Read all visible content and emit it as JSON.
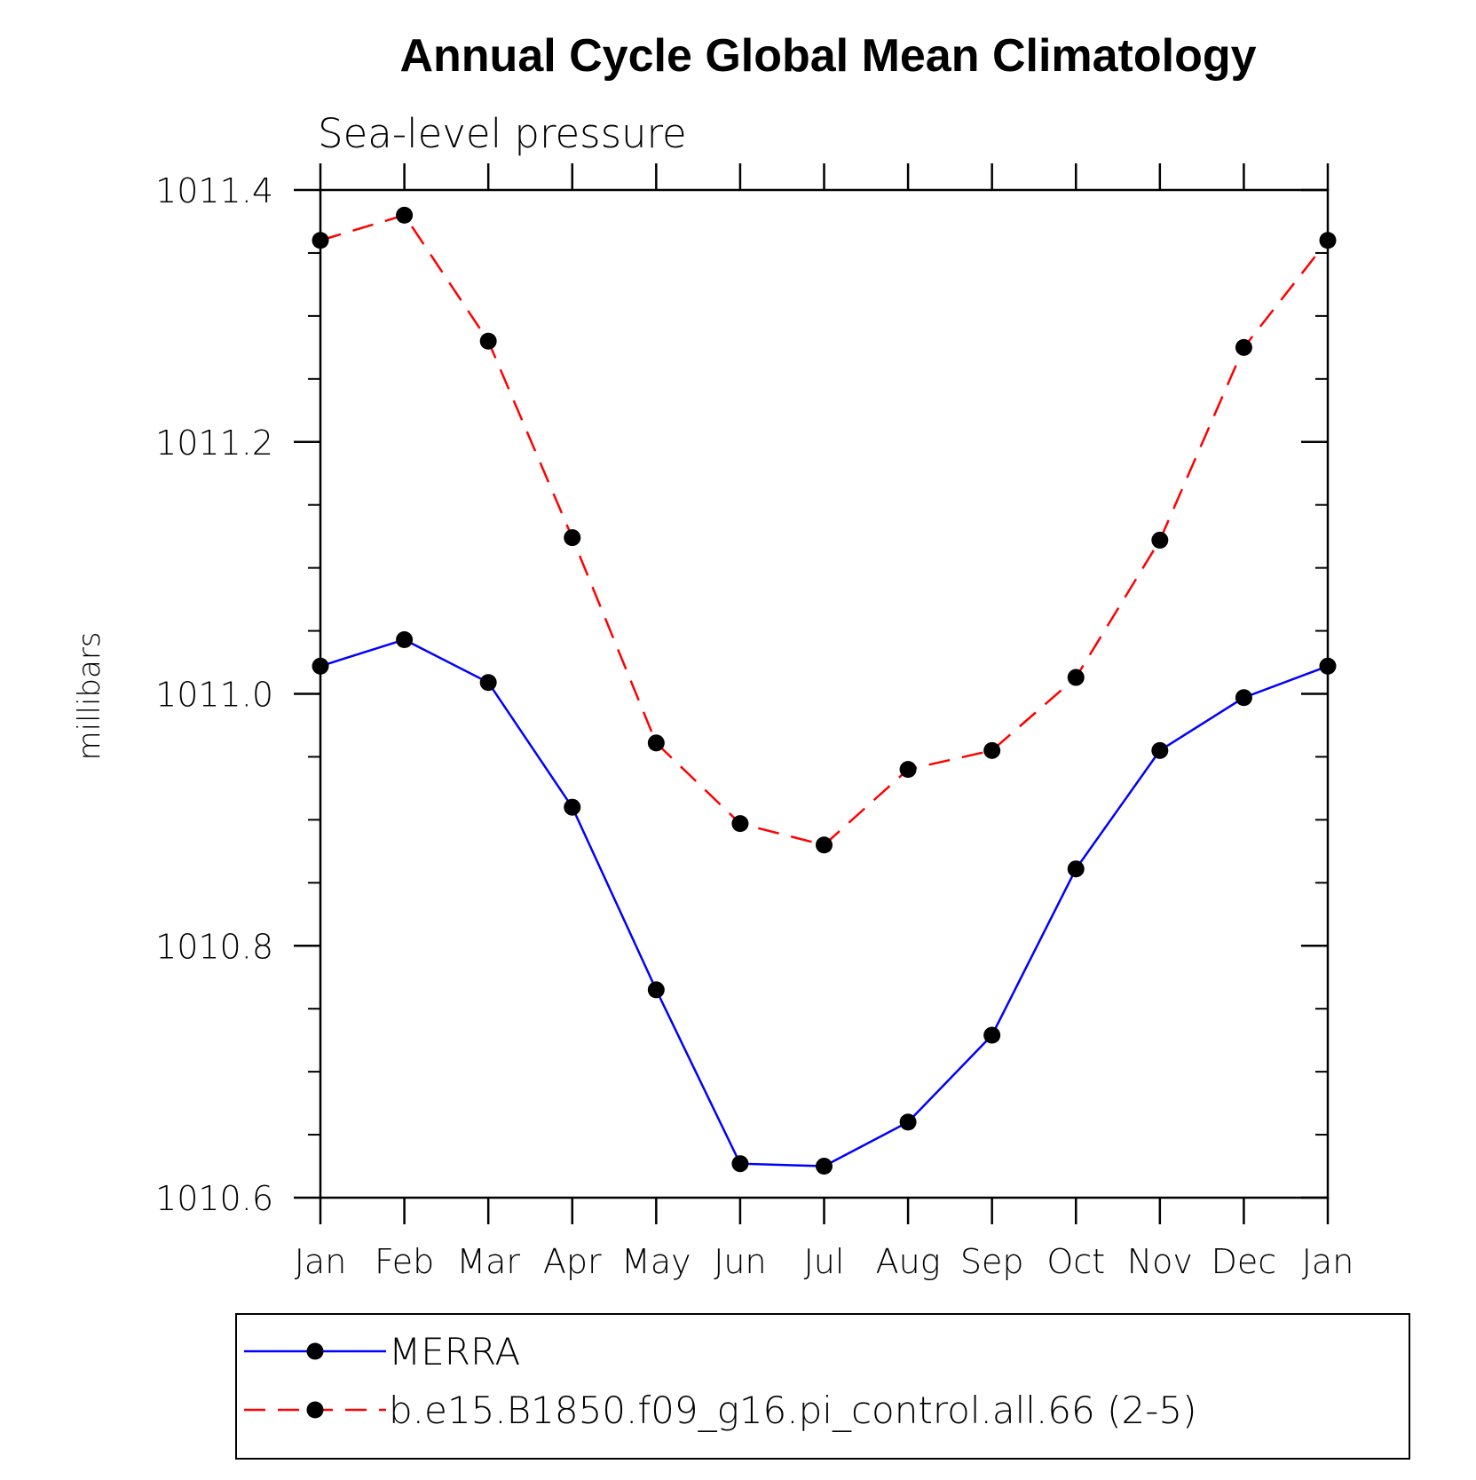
{
  "chart_data": {
    "type": "line",
    "title": "Annual Cycle Global Mean Climatology",
    "subtitle": "Sea-level pressure",
    "xlabel": "",
    "ylabel": "millibars",
    "categories": [
      "Jan",
      "Feb",
      "Mar",
      "Apr",
      "May",
      "Jun",
      "Jul",
      "Aug",
      "Sep",
      "Oct",
      "Nov",
      "Dec",
      "Jan"
    ],
    "ylim": [
      1010.6,
      1011.4
    ],
    "yticks": [
      1010.6,
      1010.8,
      1011.0,
      1011.2,
      1011.4
    ],
    "ytick_labels": [
      "1010.6",
      "1010.8",
      "1011.0",
      "1011.2",
      "1011.4"
    ],
    "yminor_step": 0.05,
    "grid": false,
    "legend_position": "bottom",
    "series": [
      {
        "name": "MERRA",
        "color": "#0000ff",
        "dash": "solid",
        "values": [
          1011.022,
          1011.043,
          1011.009,
          1010.91,
          1010.765,
          1010.627,
          1010.625,
          1010.66,
          1010.729,
          1010.861,
          1010.955,
          1010.997,
          1011.022
        ]
      },
      {
        "name": "b.e15.B1850.f09_g16.pi_control.all.66 (2-5)",
        "color": "#ff0000",
        "dash": "dashed",
        "values": [
          1011.36,
          1011.38,
          1011.28,
          1011.124,
          1010.961,
          1010.897,
          1010.88,
          1010.94,
          1010.955,
          1011.013,
          1011.122,
          1011.275,
          1011.36
        ]
      }
    ]
  }
}
